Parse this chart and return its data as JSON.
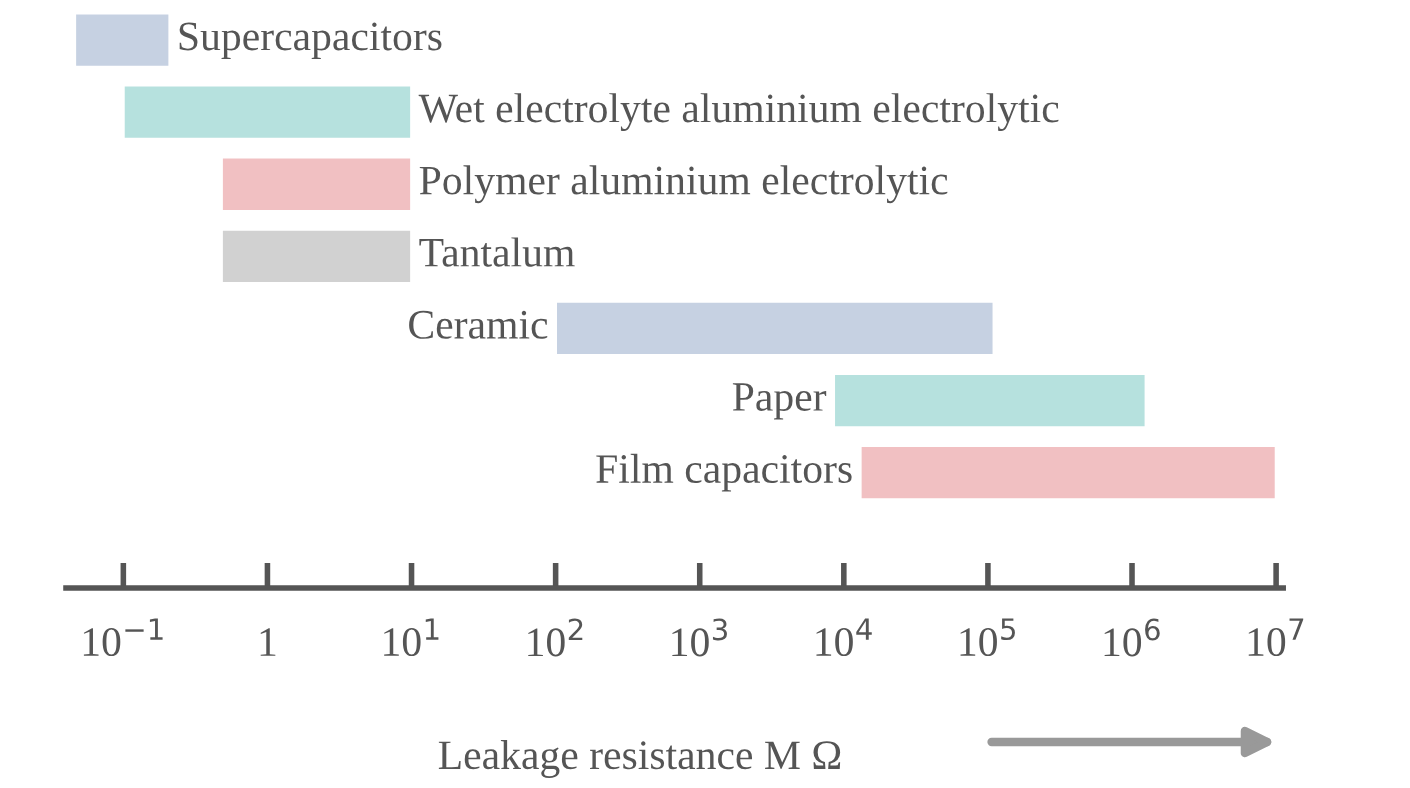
{
  "chart_data": {
    "type": "bar",
    "orientation": "horizontal",
    "log": "x",
    "categories": [
      "Supercapacitors",
      "Wet electrolyte aluminium electrolytic",
      "Polymer aluminium electrolytic",
      "Tantalum",
      "Ceramic",
      "Paper",
      "Film capacitors"
    ],
    "base": [
      0.046,
      0.1,
      0.48,
      0.48,
      100,
      8500,
      13000
    ],
    "values": [
      0.164,
      9.9,
      9.52,
      9.52,
      110000,
      1241500,
      9987000
    ],
    "colors": [
      "#c6d1e2",
      "#b6e1de",
      "#f1c0c2",
      "#d1d1d1",
      "#c6d1e2",
      "#b6e1de",
      "#f1c0c2"
    ],
    "xlim": [
      0.04,
      11200000
    ],
    "xticks": [
      {
        "value": 0.1,
        "label": "10$^{−1}$"
      },
      1,
      {
        "value": 10,
        "label": "10$^{1}$"
      },
      {
        "value": 100,
        "label": "10$^{2}$"
      },
      {
        "value": 1000,
        "label": "10$^{3}$"
      },
      {
        "value": 10000,
        "label": "10$^{4}$"
      },
      {
        "value": 100000,
        "label": "10$^{5}$"
      },
      {
        "value": 1000000,
        "label": "10$^{6}$"
      },
      {
        "value": 10000000,
        "label": "10$^{7}$"
      }
    ],
    "xlabel": "Leakage resistance M Ω",
    "tick_labels": "x",
    "grid": false,
    "legend": false
  }
}
